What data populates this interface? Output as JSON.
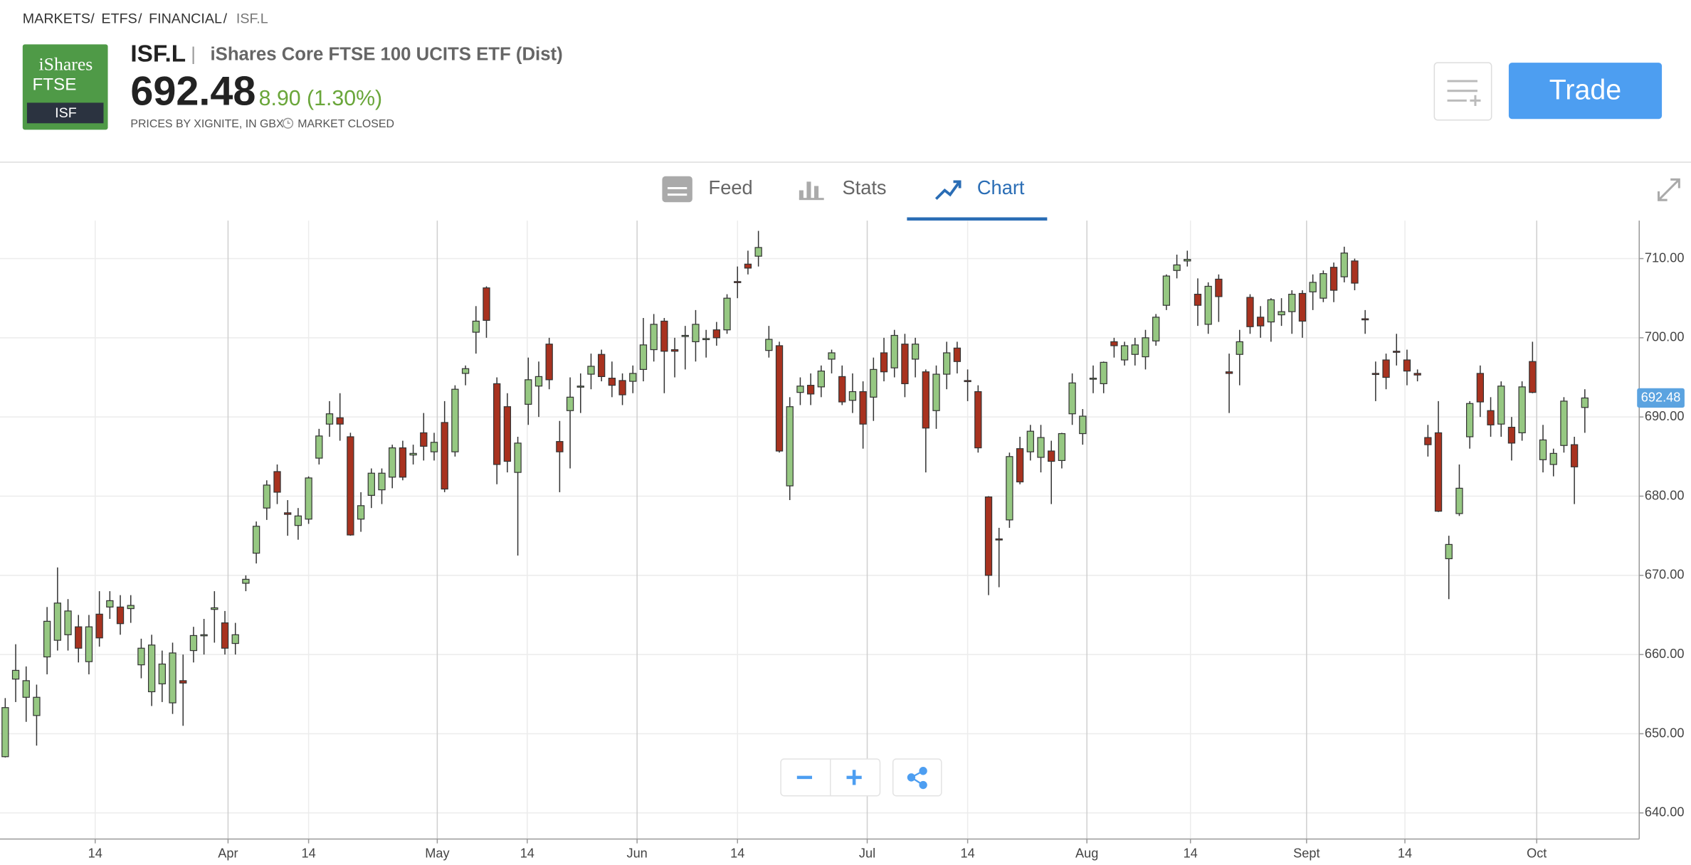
{
  "breadcrumb": [
    "MARKETS",
    "ETFS",
    "FINANCIAL",
    "ISF.L"
  ],
  "logo": {
    "line1": "iShares",
    "line2": "FTSE",
    "code": "ISF"
  },
  "header": {
    "symbol": "ISF.L",
    "name": "iShares Core FTSE 100 UCITS ETF (Dist)",
    "price": "692.48",
    "change": "8.90 (1.30%)",
    "source": "PRICES BY XIGNITE, IN GBX",
    "status": "MARKET CLOSED"
  },
  "actions": {
    "trade": "Trade"
  },
  "tabs": [
    "Feed",
    "Stats",
    "Chart"
  ],
  "chart_data": {
    "type": "candlestick",
    "up_color": "#96c882",
    "down_color": "#a8321f",
    "grid": true,
    "ylim": [
      636.7,
      714.8
    ],
    "yticks": [
      {
        "value": 640,
        "label": "640.00"
      },
      {
        "value": 650,
        "label": "650.00"
      },
      {
        "value": 660,
        "label": "660.00"
      },
      {
        "value": 670,
        "label": "670.00"
      },
      {
        "value": 680,
        "label": "680.00"
      },
      {
        "value": 690,
        "label": "690.00"
      },
      {
        "value": 700,
        "label": "700.00"
      },
      {
        "value": 710,
        "label": "710.00"
      }
    ],
    "xlim": [
      -0.5,
      156.2
    ],
    "xticks": [
      {
        "value": 8.6,
        "label": "14"
      },
      {
        "value": 21.3,
        "label": "Apr"
      },
      {
        "value": 29.0,
        "label": "14"
      },
      {
        "value": 41.3,
        "label": "May"
      },
      {
        "value": 49.9,
        "label": "14"
      },
      {
        "value": 60.4,
        "label": "Jun"
      },
      {
        "value": 70.0,
        "label": "14"
      },
      {
        "value": 82.4,
        "label": "Jul"
      },
      {
        "value": 92.0,
        "label": "14"
      },
      {
        "value": 103.4,
        "label": "Aug"
      },
      {
        "value": 113.3,
        "label": "14"
      },
      {
        "value": 124.4,
        "label": "Sept"
      },
      {
        "value": 133.8,
        "label": "14"
      },
      {
        "value": 146.4,
        "label": "Oct"
      }
    ],
    "candles": [
      [
        647.1,
        654.5,
        647.0,
        653.3
      ],
      [
        656.9,
        661.3,
        654.0,
        658.0
      ],
      [
        654.6,
        658.5,
        651.5,
        656.7
      ],
      [
        652.3,
        656.2,
        648.5,
        654.6
      ],
      [
        659.7,
        666.0,
        657.5,
        664.2
      ],
      [
        661.8,
        671.0,
        660.5,
        666.5
      ],
      [
        662.5,
        667.0,
        660.5,
        665.5
      ],
      [
        663.5,
        665.0,
        659.0,
        660.8
      ],
      [
        659.1,
        665.0,
        657.5,
        663.5
      ],
      [
        665.1,
        668.0,
        661.0,
        662.1
      ],
      [
        666.0,
        668.0,
        664.5,
        666.8
      ],
      [
        666.0,
        667.5,
        662.5,
        663.9
      ],
      [
        665.8,
        667.5,
        664.0,
        666.2
      ],
      [
        658.7,
        662.0,
        657.0,
        660.8
      ],
      [
        655.3,
        662.5,
        653.5,
        661.2
      ],
      [
        656.3,
        660.5,
        654.0,
        658.8
      ],
      [
        653.9,
        661.5,
        652.5,
        660.2
      ],
      [
        656.7,
        660.0,
        651.0,
        656.4
      ],
      [
        660.5,
        663.5,
        659.0,
        662.4
      ],
      [
        662.4,
        664.5,
        660.0,
        662.5
      ],
      [
        665.7,
        668.0,
        661.5,
        665.9
      ],
      [
        664.0,
        665.5,
        660.0,
        660.8
      ],
      [
        661.4,
        664.0,
        660.0,
        662.5
      ],
      [
        669.0,
        670.0,
        668.0,
        669.5
      ],
      [
        672.8,
        676.8,
        671.5,
        676.2
      ],
      [
        678.5,
        682.0,
        677.0,
        681.4
      ],
      [
        683.1,
        684.0,
        679.0,
        680.5
      ],
      [
        677.9,
        679.5,
        675.0,
        677.7
      ],
      [
        676.3,
        678.5,
        674.5,
        677.5
      ],
      [
        677.1,
        682.5,
        676.5,
        682.3
      ],
      [
        684.8,
        688.5,
        684.0,
        687.6
      ],
      [
        689.1,
        692.0,
        687.5,
        690.4
      ],
      [
        689.9,
        693.0,
        687.0,
        689.1
      ],
      [
        687.5,
        688.0,
        675.0,
        675.1
      ],
      [
        677.1,
        680.5,
        675.5,
        678.8
      ],
      [
        680.1,
        683.5,
        678.5,
        682.9
      ],
      [
        680.8,
        683.5,
        679.0,
        682.9
      ],
      [
        682.4,
        686.5,
        681.0,
        686.1
      ],
      [
        686.1,
        687.0,
        682.0,
        682.4
      ],
      [
        685.2,
        686.5,
        684.0,
        685.4
      ],
      [
        688.0,
        690.5,
        684.5,
        686.3
      ],
      [
        685.6,
        688.0,
        684.5,
        686.8
      ],
      [
        689.3,
        692.0,
        680.5,
        680.9
      ],
      [
        685.6,
        694.0,
        685.0,
        693.5
      ],
      [
        695.5,
        696.5,
        694.0,
        696.1
      ],
      [
        700.7,
        704.0,
        698.0,
        702.1
      ],
      [
        706.3,
        706.5,
        700.0,
        702.2
      ],
      [
        694.2,
        695.0,
        681.5,
        684.0
      ],
      [
        691.3,
        693.0,
        683.0,
        684.4
      ],
      [
        683.0,
        687.5,
        672.5,
        686.7
      ],
      [
        691.6,
        697.5,
        689.0,
        694.7
      ],
      [
        693.9,
        697.0,
        690.0,
        695.1
      ],
      [
        699.2,
        700.0,
        693.5,
        694.7
      ],
      [
        686.9,
        689.5,
        680.5,
        685.6
      ],
      [
        690.8,
        695.0,
        683.5,
        692.5
      ],
      [
        693.8,
        695.5,
        690.5,
        693.9
      ],
      [
        695.4,
        698.0,
        693.5,
        696.4
      ],
      [
        697.9,
        698.5,
        694.5,
        695.1
      ],
      [
        694.9,
        697.0,
        692.5,
        694.0
      ],
      [
        694.6,
        695.5,
        691.5,
        692.8
      ],
      [
        694.5,
        696.5,
        693.0,
        695.5
      ],
      [
        696.0,
        702.5,
        694.5,
        699.1
      ],
      [
        698.5,
        703.0,
        697.0,
        701.7
      ],
      [
        702.1,
        702.5,
        693.0,
        698.3
      ],
      [
        698.5,
        700.0,
        695.0,
        698.3
      ],
      [
        700.2,
        701.5,
        696.0,
        700.3
      ],
      [
        699.5,
        703.5,
        697.0,
        701.7
      ],
      [
        699.8,
        701.0,
        697.5,
        699.9
      ],
      [
        701.0,
        702.0,
        699.0,
        700.0
      ],
      [
        701.0,
        705.5,
        700.5,
        705.0
      ],
      [
        707.1,
        709.0,
        705.0,
        707.0
      ],
      [
        709.3,
        711.0,
        708.0,
        708.8
      ],
      [
        710.3,
        713.5,
        709.0,
        711.4
      ],
      [
        698.4,
        701.5,
        697.5,
        699.8
      ],
      [
        699.0,
        699.5,
        685.5,
        685.7
      ],
      [
        681.3,
        692.5,
        679.5,
        691.3
      ],
      [
        693.1,
        695.0,
        691.5,
        693.9
      ],
      [
        694.0,
        695.5,
        691.5,
        692.9
      ],
      [
        693.8,
        696.5,
        692.5,
        695.8
      ],
      [
        697.3,
        698.5,
        695.5,
        698.1
      ],
      [
        695.1,
        696.5,
        691.5,
        691.9
      ],
      [
        692.1,
        695.5,
        690.5,
        693.2
      ],
      [
        693.2,
        694.5,
        686.0,
        689.1
      ],
      [
        692.5,
        697.5,
        689.5,
        696.0
      ],
      [
        698.1,
        700.0,
        694.5,
        695.7
      ],
      [
        696.2,
        701.0,
        695.0,
        700.3
      ],
      [
        699.2,
        700.5,
        692.5,
        694.2
      ],
      [
        697.3,
        700.0,
        695.0,
        699.2
      ],
      [
        695.7,
        696.0,
        683.0,
        688.6
      ],
      [
        690.8,
        696.5,
        688.5,
        695.4
      ],
      [
        695.4,
        699.5,
        693.5,
        698.1
      ],
      [
        698.7,
        699.5,
        695.5,
        697.0
      ],
      [
        694.6,
        696.0,
        692.0,
        694.5
      ],
      [
        693.2,
        694.0,
        685.5,
        686.1
      ],
      [
        679.9,
        680.0,
        667.5,
        670.0
      ],
      [
        674.6,
        676.0,
        668.5,
        674.5
      ],
      [
        677.0,
        685.5,
        676.0,
        685.0
      ],
      [
        686.0,
        687.5,
        681.5,
        681.8
      ],
      [
        685.6,
        689.0,
        684.5,
        688.2
      ],
      [
        684.9,
        689.0,
        683.0,
        687.4
      ],
      [
        685.7,
        687.0,
        679.0,
        684.4
      ],
      [
        684.5,
        688.0,
        683.5,
        687.9
      ],
      [
        690.4,
        695.5,
        689.0,
        694.3
      ],
      [
        687.9,
        691.0,
        686.5,
        690.1
      ],
      [
        694.8,
        696.5,
        693.0,
        694.9
      ],
      [
        694.2,
        697.0,
        693.0,
        696.9
      ],
      [
        699.5,
        700.0,
        697.5,
        699.0
      ],
      [
        697.2,
        699.5,
        696.5,
        699.0
      ],
      [
        697.9,
        700.0,
        696.5,
        699.1
      ],
      [
        697.6,
        701.0,
        696.0,
        700.0
      ],
      [
        699.6,
        703.0,
        699.0,
        702.6
      ],
      [
        704.1,
        708.0,
        703.5,
        707.8
      ],
      [
        708.5,
        710.5,
        707.5,
        709.2
      ],
      [
        709.7,
        711.0,
        709.0,
        709.9
      ],
      [
        705.5,
        707.5,
        701.5,
        704.1
      ],
      [
        701.7,
        707.0,
        700.5,
        706.5
      ],
      [
        707.4,
        708.0,
        702.0,
        705.2
      ],
      [
        695.7,
        698.0,
        690.5,
        695.5
      ],
      [
        697.9,
        701.0,
        694.0,
        699.5
      ],
      [
        705.1,
        705.5,
        700.5,
        701.4
      ],
      [
        702.6,
        704.0,
        700.0,
        701.5
      ],
      [
        702.0,
        705.0,
        699.5,
        704.8
      ],
      [
        702.9,
        705.0,
        701.5,
        703.3
      ],
      [
        703.3,
        706.0,
        700.5,
        705.5
      ],
      [
        705.6,
        706.0,
        700.0,
        702.1
      ],
      [
        705.8,
        708.0,
        703.5,
        707.0
      ],
      [
        705.0,
        708.5,
        704.5,
        708.1
      ],
      [
        708.9,
        709.5,
        704.5,
        706.0
      ],
      [
        707.7,
        711.5,
        707.0,
        710.7
      ],
      [
        709.7,
        710.0,
        706.0,
        706.9
      ],
      [
        702.4,
        703.5,
        700.5,
        702.3
      ],
      [
        695.5,
        697.0,
        692.0,
        695.4
      ],
      [
        697.2,
        698.0,
        693.5,
        695.0
      ],
      [
        698.3,
        700.5,
        696.5,
        698.2
      ],
      [
        697.2,
        698.5,
        694.0,
        695.8
      ],
      [
        695.5,
        696.0,
        694.5,
        695.3
      ],
      [
        687.4,
        689.0,
        685.0,
        686.5
      ],
      [
        688.0,
        692.0,
        678.0,
        678.1
      ],
      [
        672.1,
        675.0,
        667.0,
        673.9
      ],
      [
        677.8,
        684.0,
        677.5,
        681.0
      ],
      [
        687.5,
        692.0,
        686.0,
        691.7
      ],
      [
        695.5,
        696.5,
        690.0,
        691.9
      ],
      [
        690.8,
        692.5,
        687.5,
        689.0
      ],
      [
        689.1,
        694.5,
        687.5,
        693.9
      ],
      [
        688.7,
        690.0,
        684.5,
        686.7
      ],
      [
        688.0,
        694.5,
        687.0,
        693.8
      ],
      [
        697.0,
        699.5,
        693.0,
        693.1
      ],
      [
        684.6,
        689.0,
        683.0,
        687.1
      ],
      [
        684.0,
        686.0,
        682.5,
        685.4
      ],
      [
        686.4,
        692.5,
        685.5,
        692.0
      ],
      [
        686.5,
        687.5,
        679.0,
        683.7
      ],
      [
        691.2,
        693.5,
        688.0,
        692.4
      ]
    ]
  }
}
